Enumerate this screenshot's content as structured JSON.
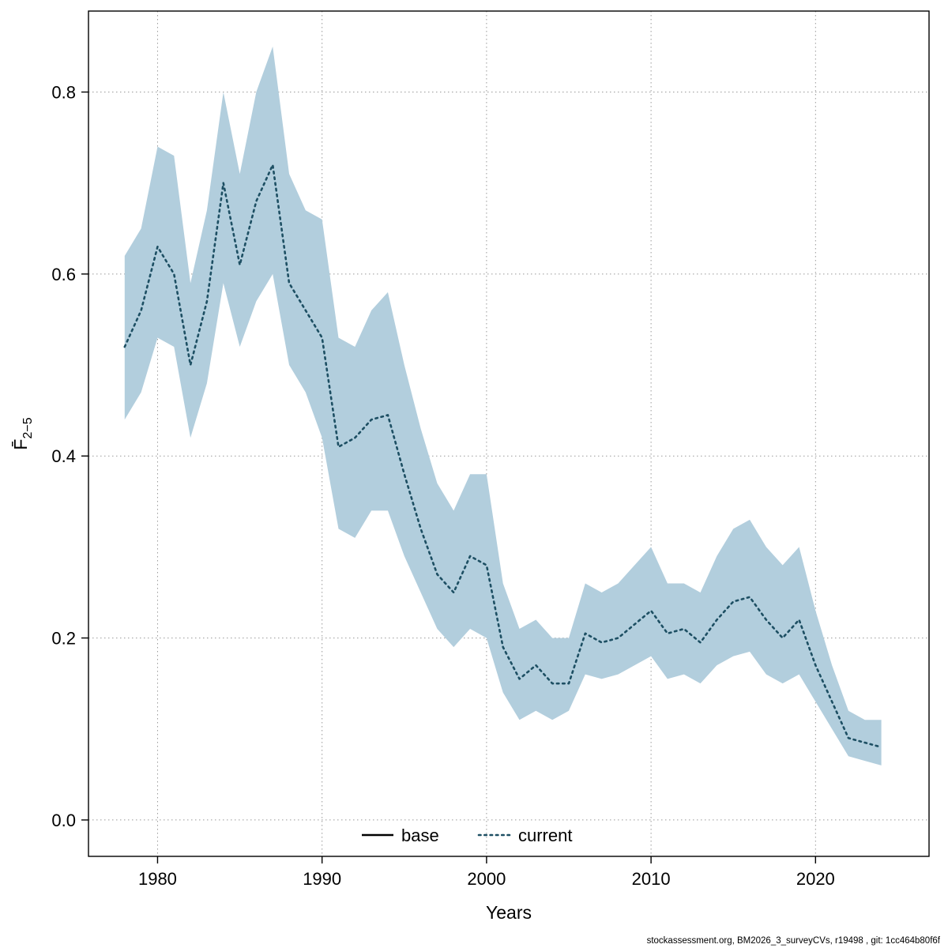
{
  "figure": {
    "footer": "stockassessment.org, BM2026_3_surveyCVs, r19498 , git: 1cc464b80f6f"
  },
  "chart_data": {
    "type": "line",
    "title": "",
    "xlabel": "Years",
    "ylabel_main": "F̄",
    "ylabel_sub": "2−5",
    "xlim": [
      1975.8,
      2026.9
    ],
    "ylim": [
      -0.04,
      0.889
    ],
    "xticks": [
      1980,
      1990,
      2000,
      2010,
      2020
    ],
    "yticks": [
      0.0,
      0.2,
      0.4,
      0.6,
      0.8
    ],
    "ytick_labels": [
      "0.0",
      "0.2",
      "0.4",
      "0.6",
      "0.8"
    ],
    "grid": "dotted",
    "colors": {
      "band_fill": "#b2cedd",
      "current_line": "#1d4f63",
      "base_line": "#000000",
      "grid_line": "#999999",
      "axis": "#000000"
    },
    "legend": {
      "position": "bottom-center-inside",
      "entries": [
        {
          "label": "base",
          "line": "solid",
          "color": "#000000"
        },
        {
          "label": "current",
          "line": "dotted",
          "color": "#1d4f63"
        }
      ]
    },
    "years": [
      1978,
      1979,
      1980,
      1981,
      1982,
      1983,
      1984,
      1985,
      1986,
      1987,
      1988,
      1989,
      1990,
      1991,
      1992,
      1993,
      1994,
      1995,
      1996,
      1997,
      1998,
      1999,
      2000,
      2001,
      2002,
      2003,
      2004,
      2005,
      2006,
      2007,
      2008,
      2009,
      2010,
      2011,
      2012,
      2013,
      2014,
      2015,
      2016,
      2017,
      2018,
      2019,
      2020,
      2021,
      2022,
      2023,
      2024
    ],
    "series": [
      {
        "name": "base",
        "line": "solid",
        "color": "#000000",
        "visible_in_plot": false
      },
      {
        "name": "current",
        "line": "dotted",
        "color": "#1d4f63",
        "values": [
          0.52,
          0.56,
          0.63,
          0.6,
          0.5,
          0.57,
          0.7,
          0.61,
          0.68,
          0.72,
          0.59,
          0.56,
          0.53,
          0.41,
          0.42,
          0.44,
          0.445,
          0.38,
          0.32,
          0.27,
          0.25,
          0.29,
          0.28,
          0.19,
          0.155,
          0.17,
          0.15,
          0.15,
          0.205,
          0.195,
          0.2,
          0.215,
          0.23,
          0.205,
          0.21,
          0.195,
          0.22,
          0.24,
          0.245,
          0.22,
          0.2,
          0.22,
          0.17,
          0.13,
          0.09,
          0.085,
          0.08
        ]
      }
    ],
    "band": {
      "fill": "#b2cedd",
      "lower": [
        0.44,
        0.47,
        0.53,
        0.52,
        0.42,
        0.48,
        0.59,
        0.52,
        0.57,
        0.6,
        0.5,
        0.47,
        0.42,
        0.32,
        0.31,
        0.34,
        0.34,
        0.29,
        0.25,
        0.21,
        0.19,
        0.21,
        0.2,
        0.14,
        0.11,
        0.12,
        0.11,
        0.12,
        0.16,
        0.155,
        0.16,
        0.17,
        0.18,
        0.155,
        0.16,
        0.15,
        0.17,
        0.18,
        0.185,
        0.16,
        0.15,
        0.16,
        0.13,
        0.1,
        0.07,
        0.065,
        0.06
      ],
      "upper": [
        0.62,
        0.65,
        0.74,
        0.73,
        0.59,
        0.67,
        0.8,
        0.71,
        0.8,
        0.85,
        0.71,
        0.67,
        0.66,
        0.53,
        0.52,
        0.56,
        0.58,
        0.5,
        0.43,
        0.37,
        0.34,
        0.38,
        0.38,
        0.26,
        0.21,
        0.22,
        0.2,
        0.2,
        0.26,
        0.25,
        0.26,
        0.28,
        0.3,
        0.26,
        0.26,
        0.25,
        0.29,
        0.32,
        0.33,
        0.3,
        0.28,
        0.3,
        0.23,
        0.17,
        0.12,
        0.11,
        0.11
      ]
    }
  }
}
